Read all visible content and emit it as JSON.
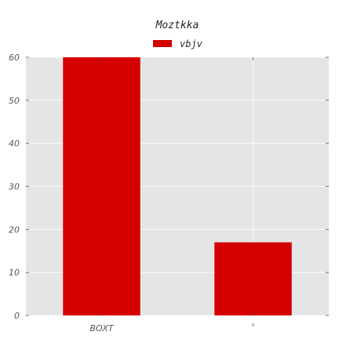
{
  "chart_data": {
    "type": "bar",
    "title": "Moztkka",
    "categories": [
      "BOXT",
      "n"
    ],
    "series": [
      {
        "name": "vbjv",
        "values": [
          60,
          17
        ]
      }
    ],
    "xlabel": "",
    "ylabel": "",
    "ylim": [
      0,
      60
    ],
    "yticks": [
      0,
      10,
      20,
      30,
      40,
      50,
      60
    ],
    "grid": true,
    "legend": "top-center"
  },
  "colors": {
    "bar": "#d40000",
    "plot_background": "#e5e5e5",
    "grid": "#ffffff"
  }
}
